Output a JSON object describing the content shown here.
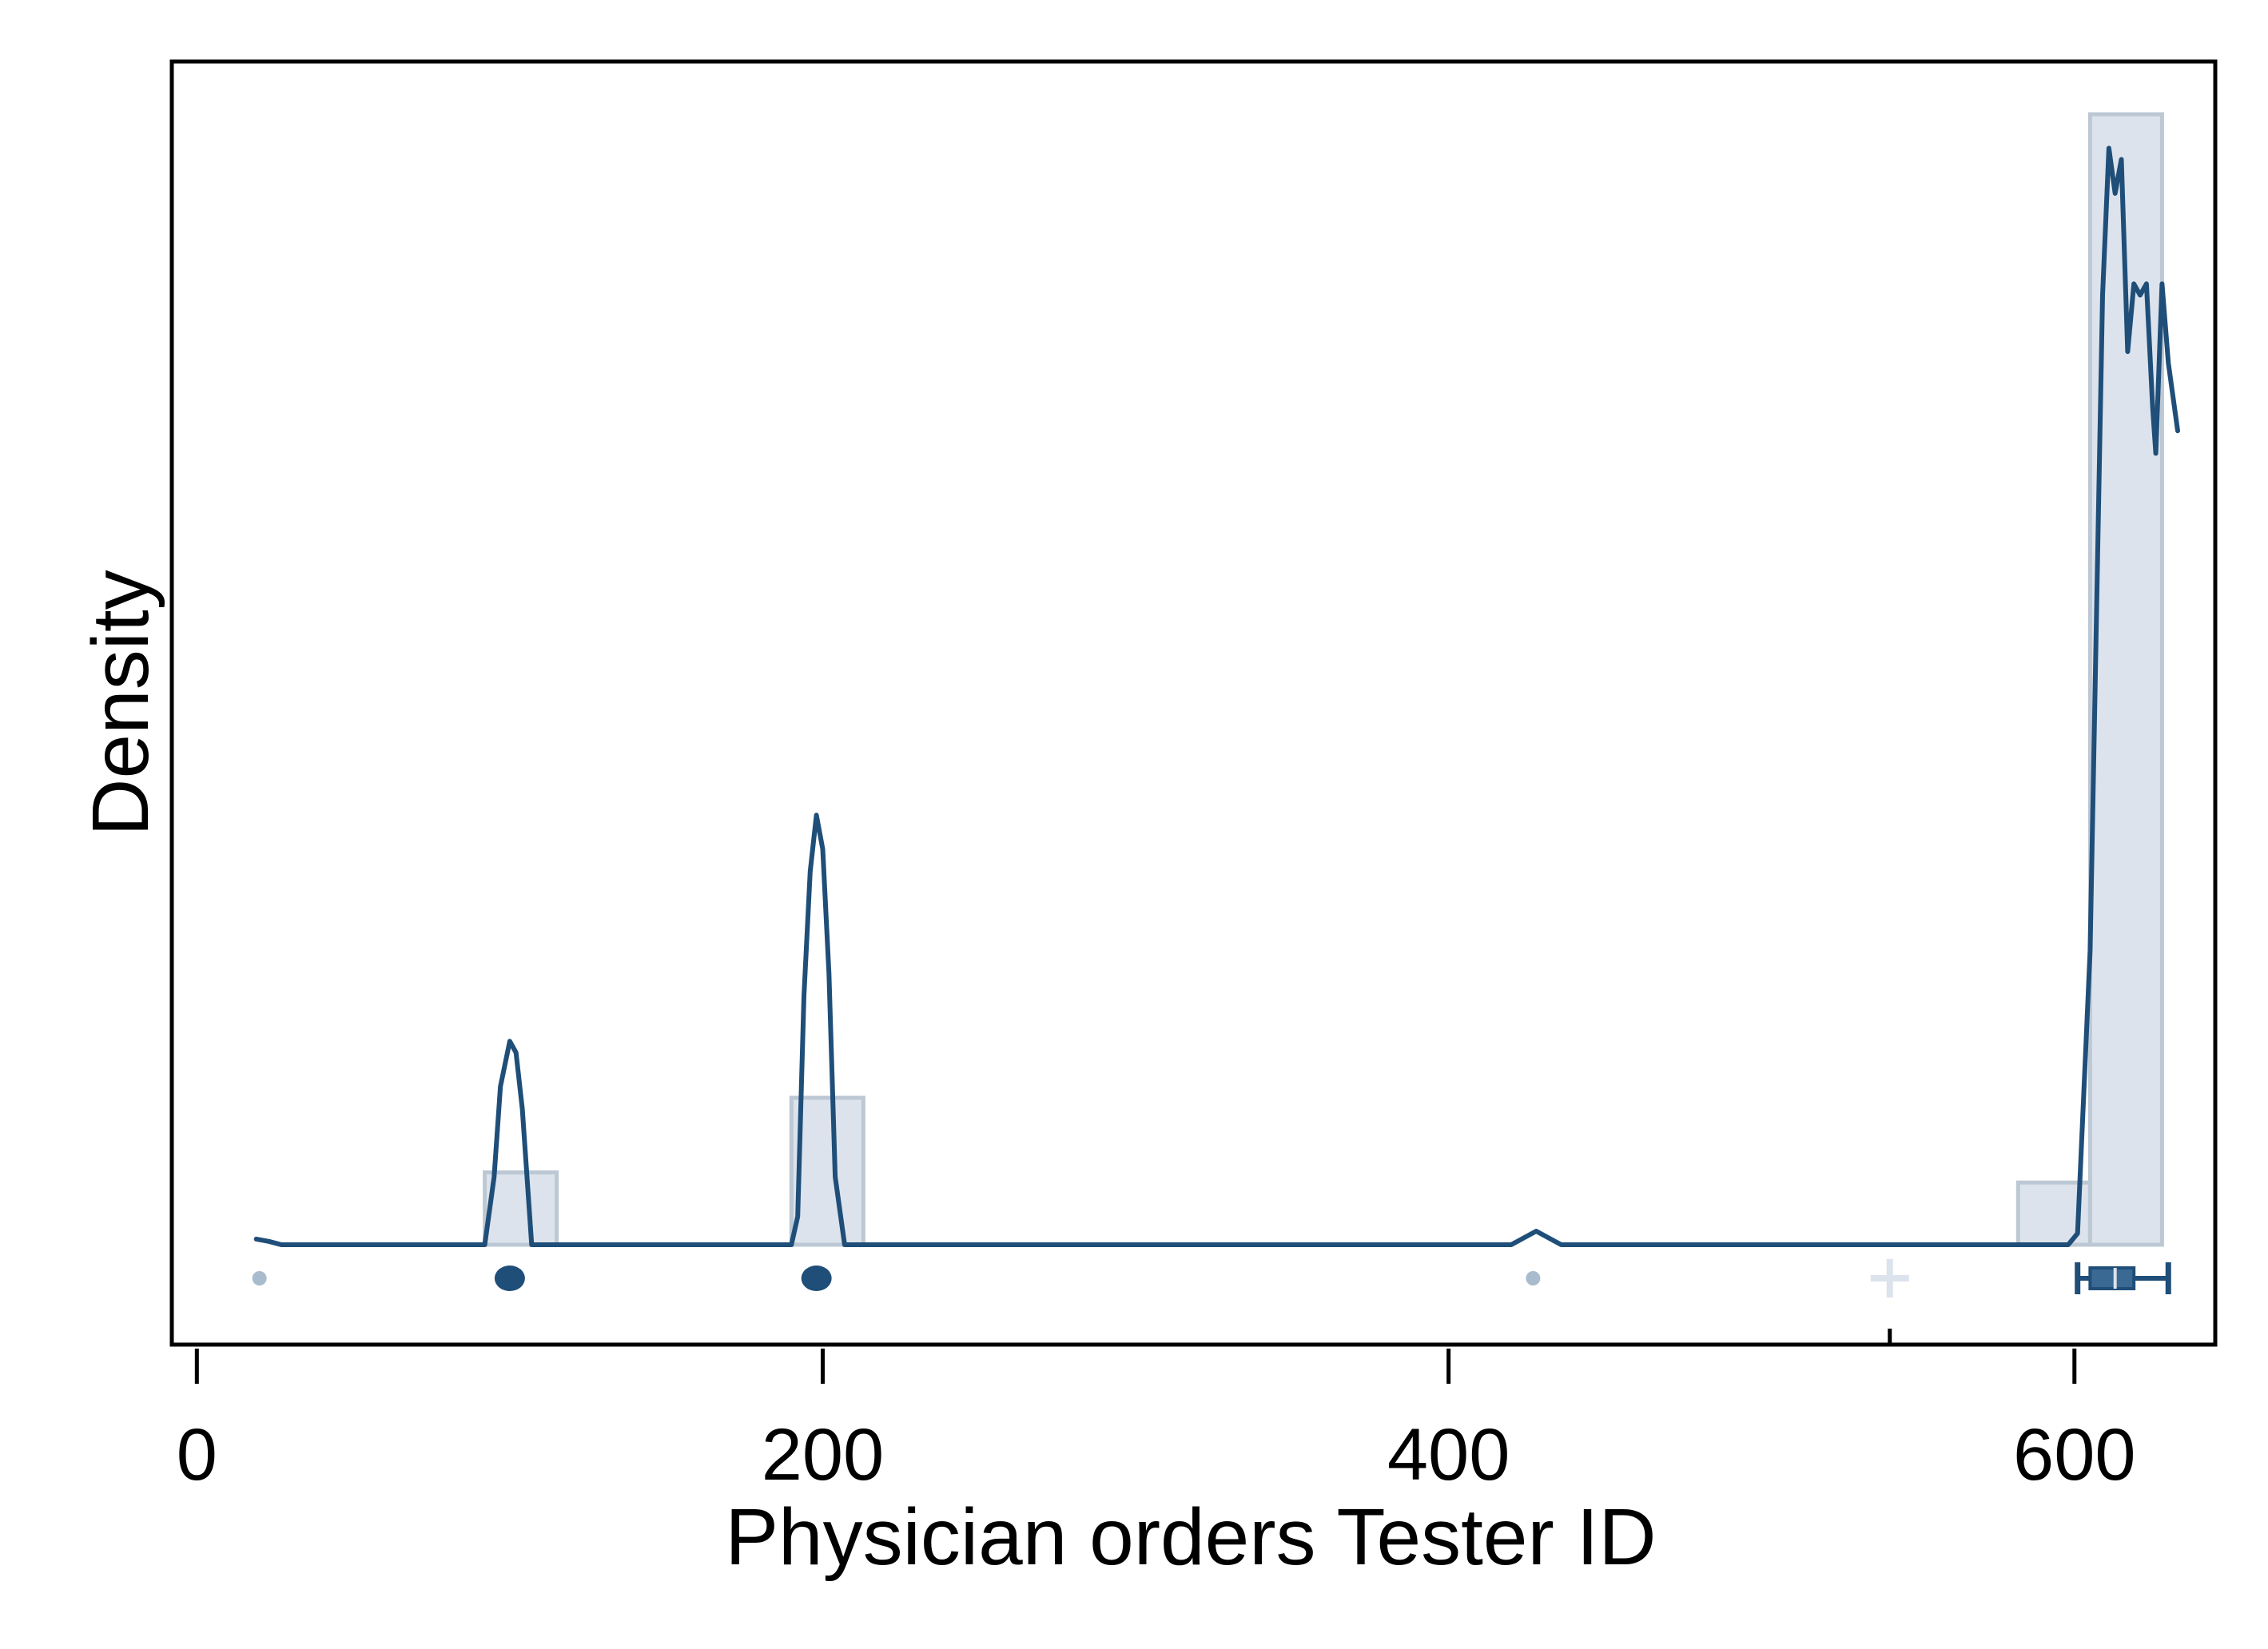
{
  "chart_data": {
    "type": "histogram",
    "xlabel": "Physician orders Tester ID",
    "ylabel": "Density",
    "xlim": [
      -8,
      645
    ],
    "x_ticks": [
      0,
      200,
      400,
      600
    ],
    "x_tick_labels": [
      "0",
      "200",
      "400",
      "600"
    ],
    "y_ticks_shown": false,
    "grid": false,
    "legend": "none",
    "colors": {
      "bar_fill": "#dce3ec",
      "bar_stroke": "#bcc8d4",
      "kde_line": "#1f4e79",
      "point_light": "#a9bccd",
      "point_dark": "#1f4e79",
      "mean_marker": "#dce3ec",
      "frame": "#000000"
    },
    "histogram_bins": [
      {
        "x_start": 92,
        "x_end": 115,
        "density_rel": 0.064
      },
      {
        "x_start": 190,
        "x_end": 213,
        "density_rel": 0.13
      },
      {
        "x_start": 582,
        "x_end": 605,
        "density_rel": 0.055
      },
      {
        "x_start": 605,
        "x_end": 628,
        "density_rel": 1.0
      }
    ],
    "kde": {
      "x": [
        19,
        23,
        27,
        45,
        92,
        95,
        97,
        100,
        102,
        104,
        107,
        110,
        190,
        192,
        194,
        196,
        198,
        200,
        202,
        204,
        207,
        420,
        428,
        436,
        598,
        601,
        605,
        609,
        611,
        613,
        615,
        617,
        619,
        621,
        623,
        625,
        626,
        628,
        630,
        633
      ],
      "y": [
        0.005,
        0.003,
        0,
        0,
        0,
        0.06,
        0.14,
        0.18,
        0.17,
        0.12,
        0.0,
        0,
        0,
        0.025,
        0.22,
        0.33,
        0.38,
        0.35,
        0.24,
        0.06,
        0,
        0,
        0.012,
        0,
        0,
        0.01,
        0.26,
        0.84,
        0.97,
        0.93,
        0.96,
        0.79,
        0.85,
        0.84,
        0.85,
        0.74,
        0.7,
        0.85,
        0.78,
        0.72
      ]
    },
    "observations": [
      {
        "x": 20,
        "size": "small",
        "shade": "light"
      },
      {
        "x": 100,
        "size": "large",
        "shade": "dark"
      },
      {
        "x": 198,
        "size": "large",
        "shade": "dark"
      },
      {
        "x": 427,
        "size": "small",
        "shade": "light"
      }
    ],
    "mean": 541,
    "boxplot": {
      "min": 601,
      "q1": 605,
      "median": 613,
      "q3": 619,
      "max": 630
    }
  }
}
